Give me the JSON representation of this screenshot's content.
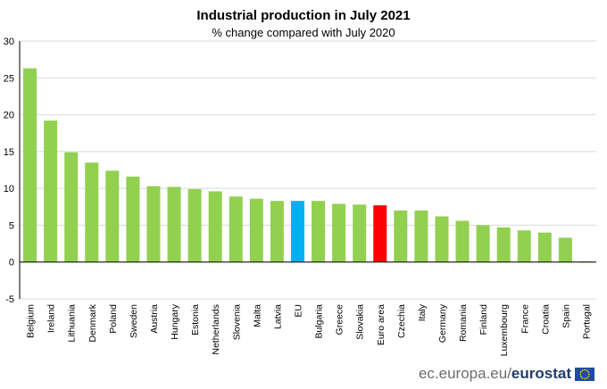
{
  "header": {
    "title": "Industrial production in July 2021",
    "subtitle": "% change compared with July 2020"
  },
  "footer": {
    "site": "ec.europa.eu/",
    "brand": "eurostat",
    "logo_icon": "eu-flag-icon"
  },
  "colors": {
    "country": "#92d050",
    "eu": "#00b0f0",
    "euro_area": "#ff0000",
    "grid": "#d9d9d9",
    "axis": "#000000"
  },
  "chart_data": {
    "type": "bar",
    "title": "Industrial production in July 2021",
    "subtitle": "% change compared with July 2020",
    "xlabel": "",
    "ylabel": "",
    "ylim": [
      -5,
      30
    ],
    "yticks": [
      -5,
      0,
      5,
      10,
      15,
      20,
      25,
      30
    ],
    "grid": true,
    "legend": "none",
    "categories": [
      "Belgium",
      "Ireland",
      "Lithuania",
      "Denmark",
      "Poland",
      "Sweden",
      "Austria",
      "Hungary",
      "Estonia",
      "Netherlands",
      "Slovenia",
      "Malta",
      "Latvia",
      "EU",
      "Bulgaria",
      "Greece",
      "Slovakia",
      "Euro area",
      "Czechia",
      "Italy",
      "Germany",
      "Romania",
      "Finland",
      "Luxembourg",
      "France",
      "Croatia",
      "Spain",
      "Portugal"
    ],
    "values": [
      26.3,
      19.2,
      14.9,
      13.5,
      12.4,
      11.6,
      10.3,
      10.2,
      9.9,
      9.6,
      8.9,
      8.6,
      8.3,
      8.3,
      8.3,
      7.9,
      7.8,
      7.7,
      7.0,
      7.0,
      6.2,
      5.6,
      5.0,
      4.7,
      4.3,
      4.0,
      3.3,
      0.1
    ],
    "highlight": {
      "EU": "eu",
      "Euro area": "euro_area"
    }
  }
}
